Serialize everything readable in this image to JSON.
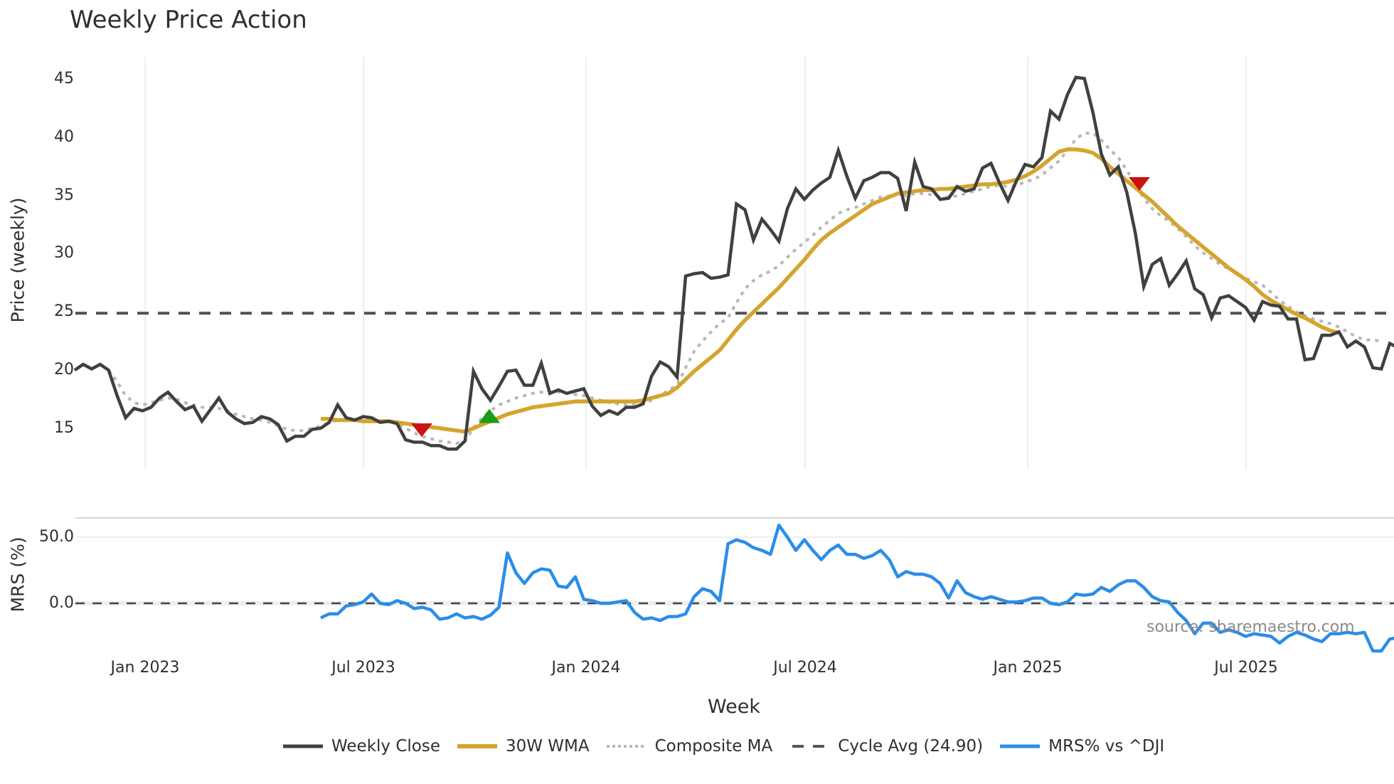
{
  "chart": {
    "title": "Weekly Price Action",
    "price_ylabel": "Price (weekly)",
    "mrs_ylabel": "MRS (%)",
    "xlabel": "Week",
    "source": "source: sharemaestro.com",
    "price_ticks": [
      "45",
      "40",
      "35",
      "30",
      "25",
      "20",
      "15"
    ],
    "mrs_ticks": [
      "50.0",
      "0.0"
    ],
    "x_ticks": [
      "Jan 2023",
      "Jul 2023",
      "Jan 2024",
      "Jul 2024",
      "Jan 2025",
      "Jul 2025"
    ],
    "legend": [
      {
        "label": "Weekly Close",
        "color": "#404040",
        "style": "solid"
      },
      {
        "label": "30W WMA",
        "color": "#d4a52c",
        "style": "solid"
      },
      {
        "label": "Composite MA",
        "color": "#b8b8b8",
        "style": "dotted"
      },
      {
        "label": "Cycle Avg (24.90)",
        "color": "#555555",
        "style": "dashed"
      },
      {
        "label": "MRS% vs ^DJI",
        "color": "#2b8de8",
        "style": "solid"
      }
    ],
    "colors": {
      "close": "#404040",
      "wma": "#d4a52c",
      "composite": "#b8b8b8",
      "cycle": "#505050",
      "mrs": "#2b8de8",
      "sell_marker": "#cc1111",
      "buy_marker": "#1a9e1a",
      "grid": "#eceff2"
    }
  },
  "chart_data": [
    {
      "type": "line",
      "title": "Weekly Price Action",
      "xlabel": "Week",
      "ylabel": "Price (weekly)",
      "ylim": [
        11.5,
        47.5
      ],
      "grid": true,
      "legend_position": "bottom",
      "x_ticks": [
        "Jan 2023",
        "Jul 2023",
        "Jan 2024",
        "Jul 2024",
        "Jan 2025",
        "Jul 2025"
      ],
      "x_start": "2022-11",
      "x_end": "2025-10",
      "series": [
        {
          "name": "Weekly Close",
          "values": [
            20.0,
            20.5,
            20.1,
            20.5,
            20.0,
            17.8,
            15.9,
            16.7,
            16.5,
            16.8,
            17.6,
            18.1,
            17.3,
            16.6,
            16.9,
            15.6,
            16.6,
            17.6,
            16.4,
            15.8,
            15.4,
            15.5,
            16.0,
            15.8,
            15.3,
            13.9,
            14.3,
            14.3,
            14.9,
            15.0,
            15.5,
            17.0,
            15.9,
            15.7,
            16.0,
            15.9,
            15.5,
            15.6,
            15.4,
            14.0,
            13.8,
            13.8,
            13.5,
            13.5,
            13.2,
            13.2,
            13.9,
            19.9,
            18.4,
            17.4,
            18.6,
            19.9,
            20.0,
            18.7,
            18.7,
            20.6,
            18.0,
            18.3,
            18.0,
            18.2,
            18.4,
            16.9,
            16.1,
            16.5,
            16.2,
            16.8,
            16.8,
            17.1,
            19.5,
            20.7,
            20.3,
            19.4,
            28.1,
            28.3,
            28.4,
            27.9,
            28.0,
            28.2,
            34.3,
            33.8,
            31.2,
            33.0,
            32.1,
            31.1,
            33.9,
            35.6,
            34.7,
            35.5,
            36.1,
            36.6,
            38.9,
            36.7,
            34.8,
            36.3,
            36.6,
            37.0,
            37.0,
            36.5,
            33.7,
            37.9,
            35.8,
            35.6,
            34.7,
            34.8,
            35.8,
            35.4,
            35.6,
            37.4,
            37.8,
            36.1,
            34.6,
            36.3,
            37.7,
            37.5,
            38.3,
            42.3,
            41.6,
            43.7,
            45.2,
            45.1,
            42.2,
            38.6,
            36.8,
            37.5,
            35.3,
            31.8,
            27.2,
            29.1,
            29.6,
            27.3,
            28.3,
            29.4,
            27.0,
            26.5,
            24.5,
            26.2,
            26.4,
            25.9,
            25.4,
            24.3,
            25.9,
            25.6,
            25.5,
            24.4,
            24.4,
            20.9,
            21.0,
            23.0,
            23.0,
            23.3,
            22.0,
            22.5,
            22.0,
            20.2,
            20.1,
            22.3,
            21.9
          ],
          "color": "#404040"
        },
        {
          "name": "30W WMA",
          "start_index": 29,
          "values": [
            15.8,
            15.8,
            15.7,
            15.7,
            15.7,
            15.6,
            15.6,
            15.6,
            15.6,
            15.5,
            15.4,
            15.3,
            15.2,
            15.1,
            15.0,
            14.9,
            14.8,
            14.7,
            15.0,
            15.3,
            15.6,
            15.9,
            16.2,
            16.4,
            16.6,
            16.8,
            16.9,
            17.0,
            17.1,
            17.2,
            17.3,
            17.3,
            17.3,
            17.3,
            17.3,
            17.3,
            17.3,
            17.3,
            17.4,
            17.6,
            17.8,
            18.0,
            18.5,
            19.2,
            19.9,
            20.5,
            21.1,
            21.7,
            22.6,
            23.5,
            24.3,
            25.0,
            25.7,
            26.4,
            27.1,
            27.9,
            28.7,
            29.5,
            30.4,
            31.2,
            31.8,
            32.3,
            32.8,
            33.3,
            33.8,
            34.3,
            34.6,
            34.9,
            35.2,
            35.3,
            35.4,
            35.5,
            35.5,
            35.6,
            35.6,
            35.7,
            35.8,
            35.9,
            36.0,
            36.0,
            36.1,
            36.2,
            36.4,
            36.7,
            37.1,
            37.6,
            38.2,
            38.8,
            39.0,
            39.0,
            38.9,
            38.7,
            38.2,
            37.5,
            36.9,
            36.3,
            35.7,
            35.1,
            34.5,
            33.8,
            33.1,
            32.4,
            31.8,
            31.2,
            30.6,
            30.0,
            29.4,
            28.8,
            28.3,
            27.8,
            27.2,
            26.5,
            26.0,
            25.6,
            25.2,
            24.8,
            24.5,
            24.1,
            23.7,
            23.4,
            23.2
          ],
          "color": "#d4a52c"
        },
        {
          "name": "Composite MA",
          "values": [
            null,
            null,
            null,
            null,
            20.0,
            19.0,
            17.8,
            17.2,
            17.0,
            17.2,
            17.4,
            17.6,
            17.5,
            17.2,
            17.0,
            16.8,
            16.8,
            16.7,
            16.5,
            16.2,
            16.0,
            15.8,
            15.7,
            15.5,
            15.2,
            14.9,
            14.8,
            14.8,
            15.0,
            15.2,
            15.5,
            15.7,
            15.8,
            15.8,
            15.8,
            15.7,
            15.6,
            15.6,
            15.4,
            15.0,
            14.6,
            14.3,
            14.1,
            13.9,
            13.8,
            13.7,
            13.9,
            15.0,
            15.9,
            16.5,
            17.0,
            17.3,
            17.6,
            17.8,
            18.0,
            18.1,
            18.1,
            18.1,
            18.0,
            17.9,
            17.8,
            17.6,
            17.4,
            17.2,
            17.1,
            17.0,
            17.0,
            17.1,
            17.4,
            17.8,
            18.3,
            18.7,
            20.2,
            21.6,
            22.5,
            23.3,
            24.0,
            24.5,
            25.8,
            27.0,
            27.7,
            28.2,
            28.5,
            29.0,
            29.7,
            30.4,
            31.0,
            31.6,
            32.3,
            32.9,
            33.5,
            33.8,
            34.0,
            34.3,
            34.6,
            34.9,
            35.0,
            35.2,
            35.0,
            35.2,
            35.2,
            35.1,
            34.9,
            34.9,
            35.0,
            35.2,
            35.4,
            35.6,
            35.8,
            35.9,
            35.8,
            35.9,
            36.2,
            36.4,
            36.8,
            37.4,
            38.0,
            38.9,
            39.9,
            40.4,
            40.4,
            39.8,
            39.0,
            38.3,
            37.2,
            36.0,
            34.8,
            33.9,
            33.3,
            32.8,
            32.2,
            31.5,
            30.7,
            30.1,
            29.6,
            29.1,
            28.7,
            28.3,
            27.9,
            27.6,
            27.3,
            26.7,
            26.0,
            25.5,
            25.0,
            24.7,
            24.4,
            24.2,
            24.0,
            23.7,
            23.3,
            22.9,
            22.6,
            22.6,
            22.5
          ],
          "color": "#b8b8b8"
        },
        {
          "name": "Cycle Avg (24.90)",
          "values": [
            24.9
          ],
          "color": "#505050"
        }
      ],
      "annotations": [
        {
          "type": "sell",
          "marker": "triangle-down",
          "color": "#cc1111",
          "x_label": "Sep 2023",
          "y": 14.8
        },
        {
          "type": "buy",
          "marker": "triangle-up",
          "color": "#1a9e1a",
          "x_label": "Nov 2023",
          "y": 16.0
        },
        {
          "type": "sell",
          "marker": "triangle-down",
          "color": "#cc1111",
          "x_label": "Apr 2025",
          "y": 36.0
        }
      ]
    },
    {
      "type": "line",
      "title": "",
      "xlabel": "Week",
      "ylabel": "MRS (%)",
      "ylim": [
        -40,
        65
      ],
      "grid": true,
      "series": [
        {
          "name": "MRS% vs ^DJI",
          "start_index": 29,
          "values": [
            -11,
            -8,
            -8,
            -2,
            -1,
            1,
            7,
            0,
            -1,
            2,
            0,
            -4,
            -3,
            -5,
            -12,
            -11,
            -8,
            -11,
            -10,
            -12,
            -9,
            -3,
            38,
            23,
            15,
            23,
            26,
            25,
            13,
            12,
            20,
            3,
            2,
            0,
            0,
            1,
            2,
            -7,
            -12,
            -11,
            -13,
            -10,
            -10,
            -8,
            5,
            11,
            9,
            2,
            45,
            48,
            46,
            42,
            40,
            37,
            59,
            50,
            40,
            48,
            40,
            33,
            40,
            44,
            37,
            37,
            34,
            36,
            40,
            33,
            20,
            24,
            22,
            22,
            20,
            15,
            4,
            17,
            8,
            5,
            3,
            5,
            3,
            1,
            1,
            2,
            4,
            4,
            0,
            -1,
            1,
            7,
            6,
            7,
            12,
            9,
            14,
            17,
            17,
            12,
            5,
            2,
            1,
            -7,
            -13,
            -23,
            -15,
            -15,
            -22,
            -20,
            -22,
            -25,
            -23,
            -24,
            -25,
            -30,
            -25,
            -22,
            -24,
            -27,
            -29,
            -23,
            -23,
            -22,
            -23,
            -22,
            -36,
            -36,
            -27,
            -26,
            -25,
            -30,
            -26,
            -28,
            -32,
            -32,
            -24,
            -25
          ],
          "color": "#2b8de8"
        },
        {
          "name": "Zero line",
          "values": [
            0
          ],
          "color": "#404040"
        }
      ]
    }
  ]
}
